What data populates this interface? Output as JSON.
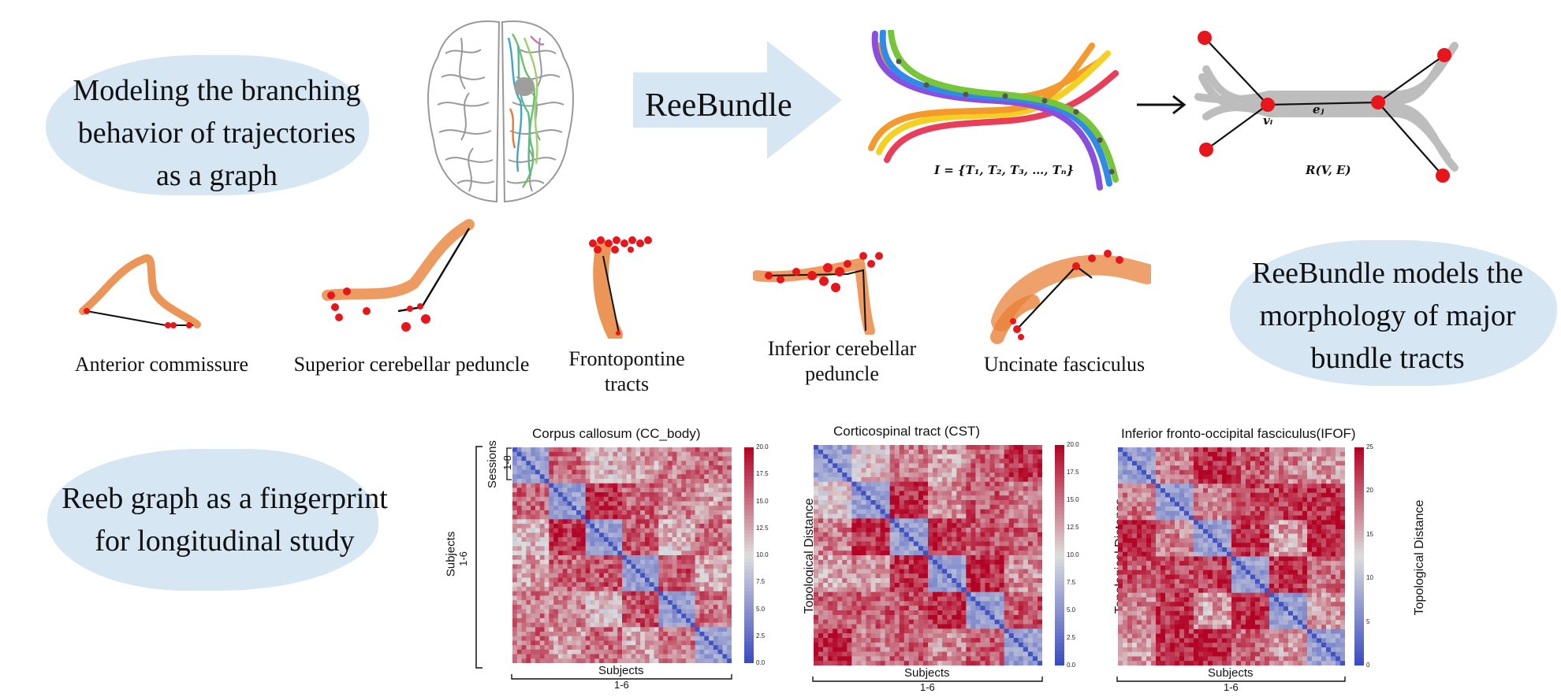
{
  "section1": {
    "line1": "Modeling the branching",
    "line2": "behavior of trajectories",
    "line3": "as a graph"
  },
  "method": {
    "arrow_label": "ReeBundle"
  },
  "formula_left": "I = {T₁, T₂, T₃, …, Tₙ}",
  "formula_right": "R(V, E)",
  "graph_labels": {
    "vertex": "vᵢ",
    "edge": "eⱼ"
  },
  "bundles": [
    {
      "line1": "Anterior commissure",
      "line2": ""
    },
    {
      "line1": "Superior cerebellar peduncle",
      "line2": ""
    },
    {
      "line1": "Frontopontine",
      "line2": "tracts"
    },
    {
      "line1": "Inferior cerebellar",
      "line2": "peduncle"
    },
    {
      "line1": "Uncinate fasciculus",
      "line2": ""
    }
  ],
  "section2": {
    "line1": "ReeBundle models the",
    "line2": "morphology of major",
    "line3": "bundle tracts"
  },
  "section3": {
    "line1": "Reeb graph as a fingerprint",
    "line2": "for longitudinal study"
  },
  "heatmap_axes": {
    "sessions": "Sessions",
    "sessions_range": "1-8",
    "subjects_y": "Subjects",
    "subjects_y_range": "1-6",
    "subjects_x": "Subjects",
    "subjects_x_range": "1-6",
    "colorbar_label": "Topological Distance"
  },
  "heatmaps": [
    {
      "title": "Corpus callosum (CC_body)",
      "ticks": [
        "20.0",
        "17.5",
        "15.0",
        "12.5",
        "10.0",
        "7.5",
        "5.0",
        "2.5",
        "0.0"
      ],
      "max": 20
    },
    {
      "title": "Corticospinal tract (CST)",
      "ticks": [
        "20.0",
        "17.5",
        "15.0",
        "12.5",
        "10.0",
        "7.5",
        "5.0",
        "2.5",
        "0.0"
      ],
      "max": 20
    },
    {
      "title": "Inferior fronto-occipital fasciculus(IFOF)",
      "ticks": [
        "25",
        "20",
        "15",
        "10",
        "5",
        "0"
      ],
      "max": 25
    }
  ],
  "colors": {
    "blob": "#d6e6f3",
    "arrow": "#d6e6f3",
    "bundle": "#e8823a",
    "node": "#e8161b",
    "gray_tract": "#bdbdbd",
    "heat_low": "#3b4cc0",
    "heat_mid": "#dddddd",
    "heat_high": "#b40426"
  }
}
